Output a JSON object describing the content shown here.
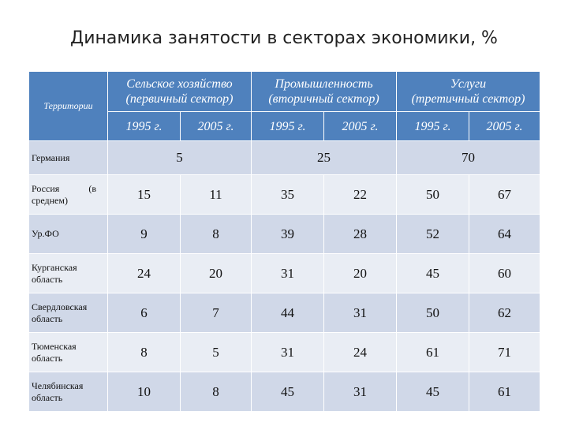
{
  "title": "Динамика занятости в секторах экономики, %",
  "table": {
    "territory_header": "Территории",
    "sectors": [
      {
        "line1": "Сельское хозяйство",
        "line2": "(первичный сектор)"
      },
      {
        "line1": "Промышленность",
        "line2": "(вторичный сектор)"
      },
      {
        "line1": "Услуги",
        "line2": "(третичный сектор)"
      }
    ],
    "years": [
      "1995 г.",
      "2005 г.",
      "1995 г.",
      "2005 г.",
      "1995 г.",
      "2005 г."
    ],
    "germany": {
      "name": "Германия",
      "values": [
        "5",
        "25",
        "70"
      ]
    },
    "russia": {
      "name_part1": "Россия",
      "name_part2": "(в",
      "name_part3": "среднем)"
    },
    "rows": [
      {
        "name": "Россия (в среднем)",
        "values": [
          "15",
          "11",
          "35",
          "22",
          "50",
          "67"
        ]
      },
      {
        "name": "Ур.ФО",
        "values": [
          "9",
          "8",
          "39",
          "28",
          "52",
          "64"
        ]
      },
      {
        "name_l1": "Курганская",
        "name_l2": "область",
        "values": [
          "24",
          "20",
          "31",
          "20",
          "45",
          "60"
        ]
      },
      {
        "name_l1": "Свердловская",
        "name_l2": "область",
        "values": [
          "6",
          "7",
          "44",
          "31",
          "50",
          "62"
        ]
      },
      {
        "name_l1": "Тюменская",
        "name_l2": "область",
        "values": [
          "8",
          "5",
          "31",
          "24",
          "61",
          "71"
        ]
      },
      {
        "name_l1": "Челябинская",
        "name_l2": "область",
        "values": [
          "10",
          "8",
          "45",
          "31",
          "45",
          "61"
        ]
      }
    ]
  }
}
